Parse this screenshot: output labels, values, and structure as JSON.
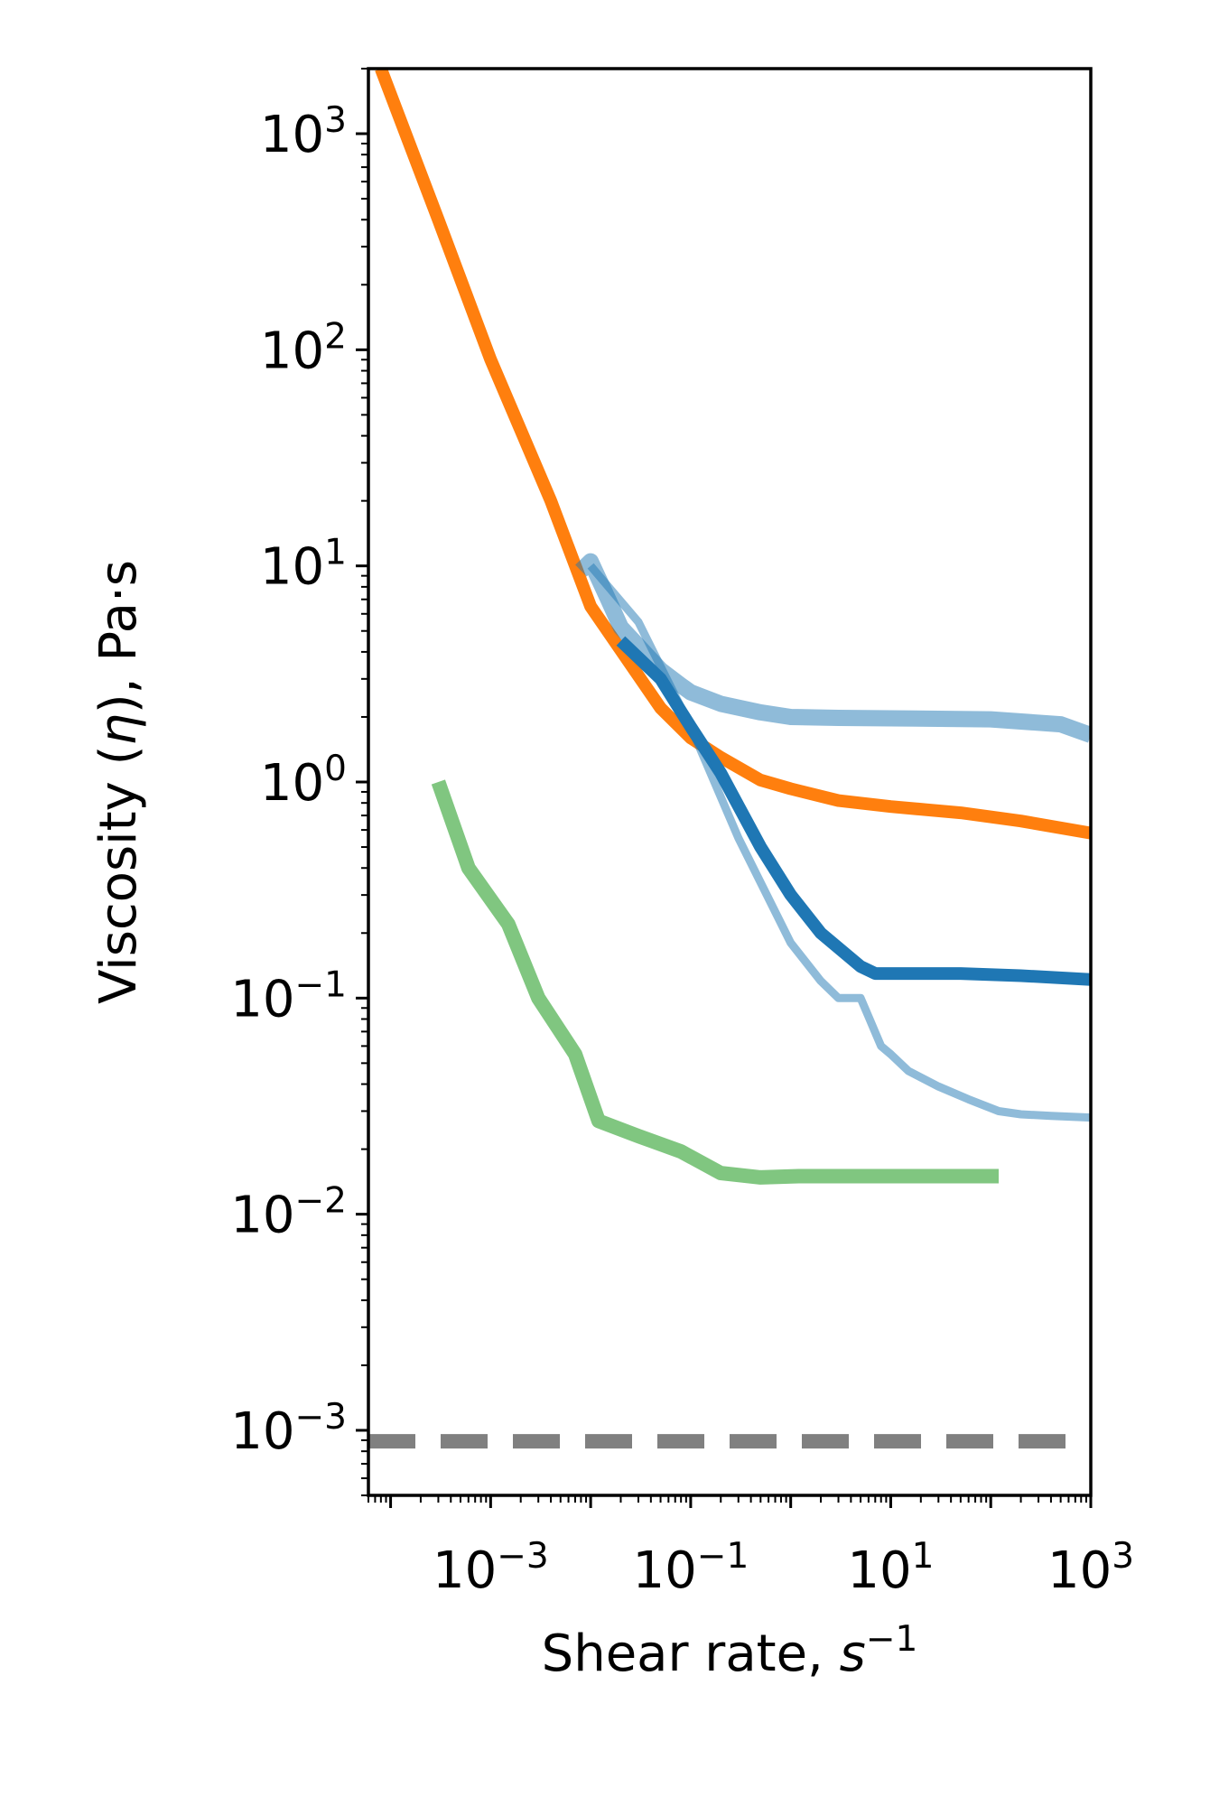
{
  "chart_data": {
    "type": "line",
    "title": "",
    "xlabel_parts": [
      "Shear rate, ",
      "s",
      "−1"
    ],
    "ylabel_parts": [
      "Viscosity (",
      "η",
      "), Pa·s"
    ],
    "xscale": "log",
    "yscale": "log",
    "xlim": [
      6e-05,
      1000
    ],
    "ylim": [
      0.0005,
      2000
    ],
    "grid": false,
    "legend": "none",
    "x_ticks": [
      {
        "value": 0.001,
        "base": "10",
        "exp": "−3"
      },
      {
        "value": 0.1,
        "base": "10",
        "exp": "−1"
      },
      {
        "value": 10,
        "base": "10",
        "exp": "1"
      },
      {
        "value": 1000,
        "base": "10",
        "exp": "3"
      }
    ],
    "y_ticks": [
      {
        "value": 1000,
        "base": "10",
        "exp": "3"
      },
      {
        "value": 100,
        "base": "10",
        "exp": "2"
      },
      {
        "value": 10,
        "base": "10",
        "exp": "1"
      },
      {
        "value": 1,
        "base": "10",
        "exp": "0"
      },
      {
        "value": 0.1,
        "base": "10",
        "exp": "−1"
      },
      {
        "value": 0.01,
        "base": "10",
        "exp": "−2"
      },
      {
        "value": 0.001,
        "base": "10",
        "exp": "−3"
      }
    ],
    "series": [
      {
        "color": "#ff7f0e",
        "opacity": 1,
        "width": 14,
        "dash": "",
        "x": [
          8e-05,
          0.0003,
          0.001,
          0.004,
          0.01,
          0.03,
          0.05,
          0.1,
          0.2,
          0.5,
          1,
          3,
          10,
          50,
          200,
          1000
        ],
        "y": [
          2000,
          400,
          90,
          20,
          6.5,
          3.1,
          2.2,
          1.6,
          1.3,
          1.02,
          0.93,
          0.82,
          0.77,
          0.72,
          0.66,
          0.58
        ]
      },
      {
        "color": "#1f77b4",
        "opacity": 0.5,
        "width": 18,
        "dash": "",
        "x": [
          0.008,
          0.01,
          0.015,
          0.02,
          0.05,
          0.08,
          0.1,
          0.2,
          0.5,
          1,
          3,
          10,
          100,
          500,
          1000
        ],
        "y": [
          9.5,
          10.5,
          7.0,
          5.2,
          3.3,
          2.8,
          2.6,
          2.3,
          2.1,
          2.0,
          1.98,
          1.97,
          1.95,
          1.85,
          1.65
        ]
      },
      {
        "color": "#1f77b4",
        "opacity": 1,
        "width": 14,
        "dash": "",
        "x": [
          0.02,
          0.05,
          0.1,
          0.2,
          0.5,
          1,
          2,
          5,
          7,
          10,
          50,
          200,
          1000
        ],
        "y": [
          4.5,
          3.0,
          1.8,
          1.1,
          0.5,
          0.3,
          0.2,
          0.14,
          0.13,
          0.13,
          0.13,
          0.127,
          0.122
        ]
      },
      {
        "color": "#1f77b4",
        "opacity": 0.5,
        "width": 9,
        "dash": "",
        "x": [
          0.01,
          0.03,
          0.1,
          0.3,
          1,
          2,
          3,
          4,
          5,
          6,
          8,
          10,
          15,
          30,
          60,
          120,
          200,
          400,
          1000
        ],
        "y": [
          10,
          5.5,
          1.8,
          0.55,
          0.18,
          0.12,
          0.1,
          0.1,
          0.1,
          0.082,
          0.06,
          0.055,
          0.046,
          0.039,
          0.034,
          0.03,
          0.029,
          0.0285,
          0.028
        ]
      },
      {
        "color": "#2ca02c",
        "opacity": 0.6,
        "width": 16,
        "dash": "",
        "x": [
          0.0003,
          0.0006,
          0.0015,
          0.003,
          0.007,
          0.012,
          0.03,
          0.08,
          0.2,
          0.5,
          1.2,
          3,
          10,
          120
        ],
        "y": [
          1.0,
          0.4,
          0.22,
          0.1,
          0.055,
          0.027,
          0.023,
          0.0195,
          0.0155,
          0.0148,
          0.015,
          0.015,
          0.015,
          0.015
        ]
      },
      {
        "color": "#808080",
        "opacity": 1,
        "width": 16,
        "dash": "52 28",
        "x": [
          6e-05,
          1000
        ],
        "y": [
          0.00089,
          0.00089
        ]
      }
    ]
  }
}
